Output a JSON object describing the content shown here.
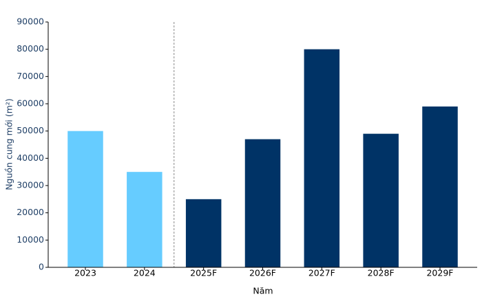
{
  "chart_data": {
    "type": "bar",
    "x_label": "Năm",
    "y_label": "Nguồn cung mới (m²)",
    "categories": [
      "2023",
      "2024",
      "2025F",
      "2026F",
      "2027F",
      "2028F",
      "2029F"
    ],
    "values": [
      50000,
      35000,
      25000,
      47000,
      80000,
      49000,
      59000
    ],
    "colors": [
      "#66ccff",
      "#66ccff",
      "#003366",
      "#003366",
      "#003366",
      "#003366",
      "#003366"
    ],
    "ylim": [
      0,
      90000
    ],
    "yticks": [
      0,
      10000,
      20000,
      30000,
      40000,
      50000,
      60000,
      70000,
      80000,
      90000
    ],
    "grid": false
  }
}
